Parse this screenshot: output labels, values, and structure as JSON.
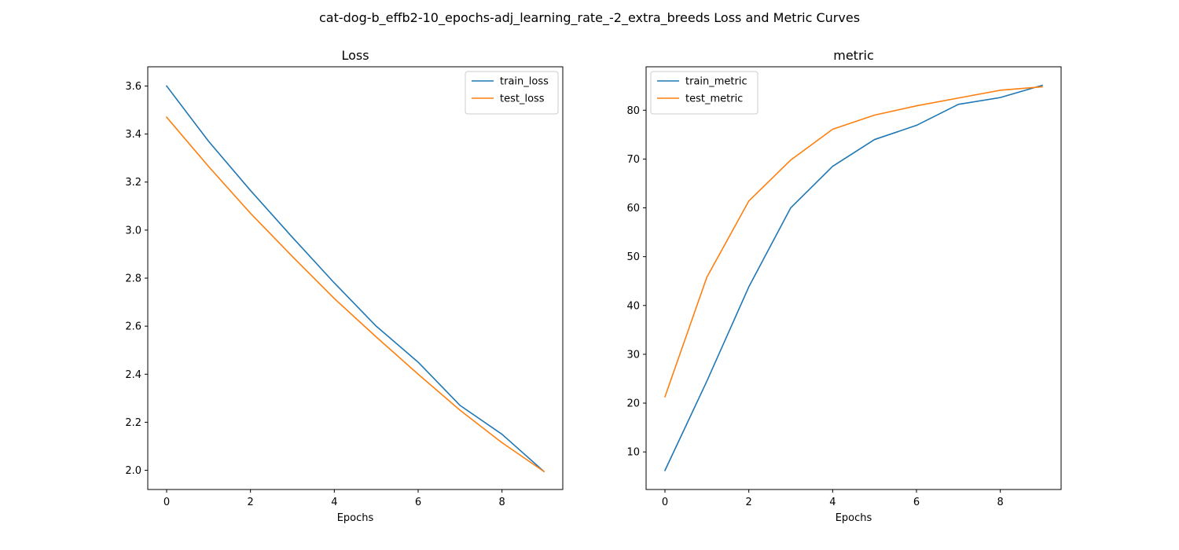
{
  "figure": {
    "title": "cat-dog-b_effb2-10_epochs-adj_learning_rate_-2_extra_breeds Loss and Metric Curves"
  },
  "chart_data": [
    {
      "type": "line",
      "title": "Loss",
      "xlabel": "Epochs",
      "ylabel": "",
      "xlim": [
        -0.45,
        9.45
      ],
      "ylim": [
        1.92,
        3.68
      ],
      "xticks": [
        0,
        2,
        4,
        6,
        8
      ],
      "yticks": [
        2.0,
        2.2,
        2.4,
        2.6,
        2.8,
        3.0,
        3.2,
        3.4,
        3.6
      ],
      "ytick_labels": [
        "2.0",
        "2.2",
        "2.4",
        "2.6",
        "2.8",
        "3.0",
        "3.2",
        "3.4",
        "3.6"
      ],
      "grid": false,
      "legend_position": "top-right",
      "x": [
        0,
        1,
        2,
        3,
        4,
        5,
        6,
        7,
        8,
        9
      ],
      "series": [
        {
          "name": "train_loss",
          "color": "#1f77b4",
          "values": [
            3.6,
            3.37,
            3.165,
            2.97,
            2.78,
            2.6,
            2.45,
            2.27,
            2.15,
            1.995
          ]
        },
        {
          "name": "test_loss",
          "color": "#ff7f0e",
          "values": [
            3.47,
            3.265,
            3.07,
            2.89,
            2.715,
            2.555,
            2.4,
            2.25,
            2.115,
            1.995
          ]
        }
      ]
    },
    {
      "type": "line",
      "title": "metric",
      "xlabel": "Epochs",
      "ylabel": "",
      "xlim": [
        -0.45,
        9.45
      ],
      "ylim": [
        2.3,
        88.9
      ],
      "xticks": [
        0,
        2,
        4,
        6,
        8
      ],
      "yticks": [
        10,
        20,
        30,
        40,
        50,
        60,
        70,
        80
      ],
      "ytick_labels": [
        "10",
        "20",
        "30",
        "40",
        "50",
        "60",
        "70",
        "80"
      ],
      "grid": false,
      "legend_position": "top-left",
      "x": [
        0,
        1,
        2,
        3,
        4,
        5,
        6,
        7,
        8,
        9
      ],
      "series": [
        {
          "name": "train_metric",
          "color": "#1f77b4",
          "values": [
            6.2,
            24.5,
            43.8,
            60.0,
            68.5,
            74.0,
            76.9,
            81.2,
            82.6,
            85.1
          ]
        },
        {
          "name": "test_metric",
          "color": "#ff7f0e",
          "values": [
            21.3,
            45.8,
            61.4,
            69.8,
            76.1,
            79.0,
            80.9,
            82.5,
            84.1,
            84.8
          ]
        }
      ]
    }
  ]
}
